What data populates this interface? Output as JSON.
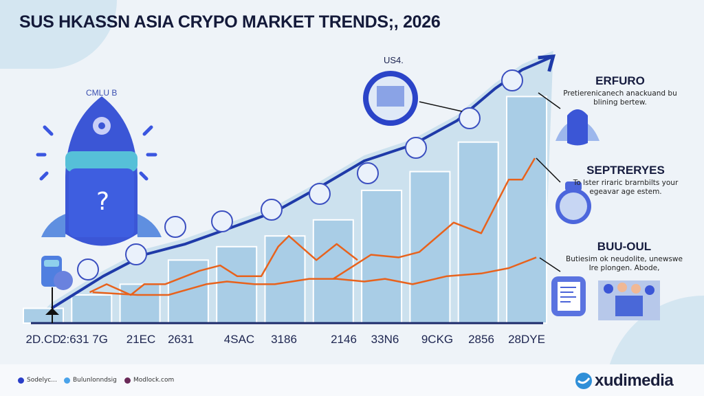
{
  "title": "SUS HKASSN ASIA CRYPO MARKET TRENDS;, 2026",
  "callout_top": "US4.",
  "rocket_label": "CMLU B",
  "side_panels": [
    {
      "heading": "ERFURO",
      "text": "Pretierenicanech anackuand bu blining bertew."
    },
    {
      "heading": "SEPTRERYES",
      "text": "To lster riraric brarnbilts your egeavar age estem."
    },
    {
      "heading": "BUU-OUL",
      "text": "Butiesim ok neudolite, unewswe Ire plongen. Abode,"
    }
  ],
  "legend": [
    {
      "label": "Sodelyc...",
      "color": "#2a3ec8"
    },
    {
      "label": "Bulunlonndsig",
      "color": "#4aa3ea"
    },
    {
      "label": "Modlock.com",
      "color": "#6a2a58"
    }
  ],
  "logo": {
    "text": "xudimedia",
    "color": "#2f8fd8"
  },
  "colors": {
    "bars": "#a9cde6",
    "trend_line": "#1f3aa8",
    "orange": "#e8621c",
    "background": "#eef3f8"
  },
  "chart_data": {
    "type": "bar",
    "title": "SUS HKASSN ASIA CRYPO MARKET TRENDS;, 2026",
    "categories": [
      "2D.CD",
      "2:631 7G",
      "21EC",
      "2631",
      "4SAC",
      "3186",
      "2146",
      "33N6",
      "9CKG",
      "2856",
      "28DYE"
    ],
    "values": [
      5,
      10,
      14,
      23,
      28,
      32,
      38,
      49,
      56,
      67,
      84
    ],
    "ylim": [
      0,
      100
    ],
    "y_axis_shown": false,
    "grid": false,
    "legend_position": "bottom-left",
    "lines": [
      {
        "style": "trend-arrow",
        "color": "#1f3aa8",
        "points": [
          [
            0.17,
            5
          ],
          [
            1.24,
            17
          ],
          [
            2.09,
            25
          ],
          [
            2.94,
            29
          ],
          [
            3.87,
            35
          ],
          [
            4.79,
            41
          ],
          [
            5.79,
            51
          ],
          [
            6.64,
            60
          ],
          [
            7.64,
            66
          ],
          [
            8.56,
            75
          ],
          [
            9.35,
            87
          ],
          [
            9.91,
            94
          ],
          [
            10.55,
            99
          ]
        ]
      },
      {
        "color": "#e8621c",
        "points": [
          [
            0.96,
            11
          ],
          [
            1.31,
            14
          ],
          [
            1.81,
            10
          ],
          [
            2.09,
            14
          ],
          [
            2.52,
            14
          ],
          [
            3.23,
            19
          ],
          [
            3.66,
            21
          ],
          [
            4.01,
            17
          ],
          [
            4.51,
            17
          ],
          [
            4.86,
            28
          ],
          [
            5.08,
            32
          ],
          [
            5.65,
            23
          ],
          [
            6.07,
            29
          ],
          [
            6.5,
            23
          ]
        ]
      },
      {
        "color": "#e8621c",
        "points": [
          [
            6.0,
            16
          ],
          [
            6.78,
            25
          ],
          [
            7.35,
            24
          ],
          [
            7.78,
            26
          ],
          [
            8.49,
            37
          ],
          [
            9.06,
            33
          ],
          [
            9.63,
            53
          ],
          [
            9.91,
            53
          ],
          [
            10.17,
            61
          ]
        ]
      },
      {
        "color": "#e8621c",
        "points": [
          [
            1.02,
            11
          ],
          [
            1.95,
            10
          ],
          [
            2.59,
            10
          ],
          [
            3.37,
            14
          ],
          [
            3.8,
            15
          ],
          [
            4.37,
            14
          ],
          [
            4.79,
            14
          ],
          [
            5.5,
            16
          ],
          [
            6.07,
            16
          ],
          [
            6.64,
            15
          ],
          [
            7.07,
            16
          ],
          [
            7.64,
            14
          ],
          [
            8.35,
            17
          ],
          [
            9.06,
            18
          ],
          [
            9.63,
            20
          ],
          [
            10.2,
            24
          ]
        ]
      }
    ]
  }
}
